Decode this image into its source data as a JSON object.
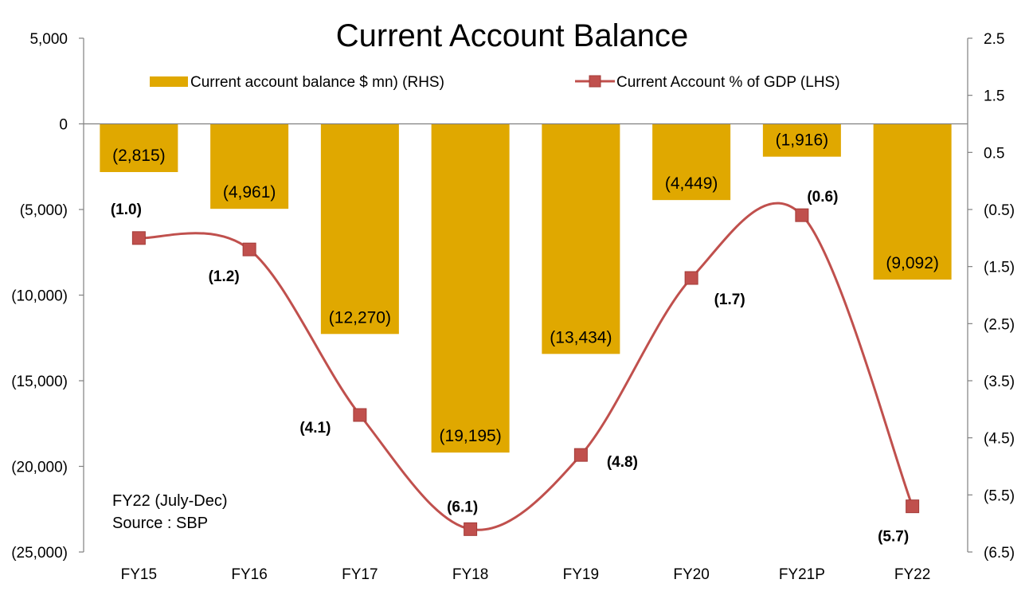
{
  "chart_data": {
    "type": "bar",
    "title": "Current Account Balance",
    "categories": [
      "FY15",
      "FY16",
      "FY17",
      "FY18",
      "FY19",
      "FY20",
      "FY21P",
      "FY22"
    ],
    "series": [
      {
        "name": "Current account balance $ mn) (RHS)",
        "type": "bar",
        "axis": "left",
        "values": [
          -2815,
          -4961,
          -12270,
          -19195,
          -13434,
          -4449,
          -1916,
          -9092
        ],
        "labels": [
          "(2,815)",
          "(4,961)",
          "(12,270)",
          "(19,195)",
          "(13,434)",
          "(4,449)",
          "(1,916)",
          "(9,092)"
        ],
        "color": "#E0A800"
      },
      {
        "name": "Current Account  % of GDP (LHS)",
        "type": "line",
        "axis": "right",
        "smooth": true,
        "marker": "square",
        "values": [
          -1.0,
          -1.2,
          -4.1,
          -6.1,
          -4.8,
          -1.7,
          -0.6,
          -5.7
        ],
        "labels": [
          "(1.0)",
          "(1.2)",
          "(4.1)",
          "(6.1)",
          "(4.8)",
          "(1.7)",
          "(0.6)",
          "(5.7)"
        ],
        "color": "#C0504D"
      }
    ],
    "left_axis": {
      "ylim": [
        -25000,
        5000
      ],
      "ticks": [
        5000,
        0,
        -5000,
        -10000,
        -15000,
        -20000,
        -25000
      ],
      "tick_labels": [
        "5,000",
        "0",
        "(5,000)",
        "(10,000)",
        "(15,000)",
        "(20,000)",
        "(25,000)"
      ]
    },
    "right_axis": {
      "ylim": [
        -6.5,
        2.5
      ],
      "ticks": [
        2.5,
        1.5,
        0.5,
        -0.5,
        -1.5,
        -2.5,
        -3.5,
        -4.5,
        -5.5,
        -6.5
      ],
      "tick_labels": [
        "2.5",
        "1.5",
        "0.5",
        "(0.5)",
        "(1.5)",
        "(2.5)",
        "(3.5)",
        "(4.5)",
        "(5.5)",
        "(6.5)"
      ]
    },
    "grid": false,
    "legend_position": "top",
    "annotations": [
      "FY22 (July-Dec)",
      "Source : SBP"
    ]
  }
}
